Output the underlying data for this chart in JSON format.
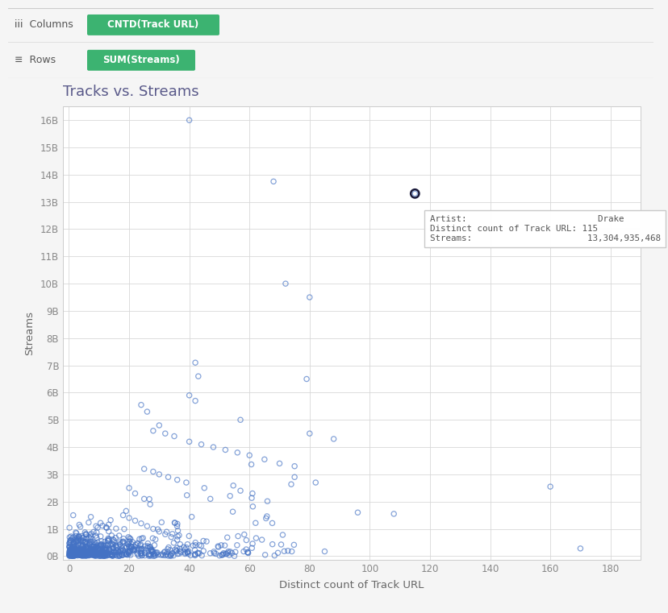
{
  "title": "Tracks vs. Streams",
  "xlabel": "Distinct count of Track URL",
  "ylabel": "Streams",
  "xlim": [
    -2,
    190
  ],
  "ylim": [
    -150000000.0,
    16500000000.0
  ],
  "yticks": [
    0,
    1000000000.0,
    2000000000.0,
    3000000000.0,
    4000000000.0,
    5000000000.0,
    6000000000.0,
    7000000000.0,
    8000000000.0,
    9000000000.0,
    10000000000.0,
    11000000000.0,
    12000000000.0,
    13000000000.0,
    14000000000.0,
    15000000000.0,
    16000000000.0
  ],
  "ytick_labels": [
    "0B",
    "1B",
    "2B",
    "3B",
    "4B",
    "5B",
    "6B",
    "7B",
    "8B",
    "9B",
    "10B",
    "11B",
    "12B",
    "13B",
    "14B",
    "15B",
    "16B"
  ],
  "xticks": [
    0,
    20,
    40,
    60,
    80,
    100,
    120,
    140,
    160,
    180
  ],
  "scatter_color": "#4472C4",
  "scatter_alpha": 0.65,
  "scatter_size": 20,
  "highlight_x": 115,
  "highlight_y": 13304935468,
  "pill_color": "#3cb371",
  "header_columns_pill": "CNTD(Track URL)",
  "header_rows_pill": "SUM(Streams)",
  "background_color": "#ffffff",
  "header_bg": "#f0f0f0",
  "grid_color": "#d8d8d8",
  "title_color": "#5a5a8a",
  "axis_label_color": "#666666",
  "tick_color": "#888888",
  "seed": 42,
  "specific_points": [
    [
      40,
      16000000000.0
    ],
    [
      68,
      13750000000.0
    ],
    [
      115,
      13304935468.0
    ],
    [
      72,
      10000000000.0
    ],
    [
      80,
      9500000000.0
    ],
    [
      42,
      7100000000.0
    ],
    [
      43,
      6600000000.0
    ],
    [
      79,
      6500000000.0
    ],
    [
      40,
      5900000000.0
    ],
    [
      42,
      5700000000.0
    ],
    [
      24,
      5550000000.0
    ],
    [
      26,
      5300000000.0
    ],
    [
      57,
      5000000000.0
    ],
    [
      80,
      4500000000.0
    ],
    [
      88,
      4300000000.0
    ],
    [
      30,
      4800000000.0
    ],
    [
      28,
      4600000000.0
    ],
    [
      32,
      4500000000.0
    ],
    [
      35,
      4400000000.0
    ],
    [
      40,
      4200000000.0
    ],
    [
      44,
      4100000000.0
    ],
    [
      48,
      4000000000.0
    ],
    [
      52,
      3900000000.0
    ],
    [
      56,
      3800000000.0
    ],
    [
      60,
      3700000000.0
    ],
    [
      65,
      3550000000.0
    ],
    [
      70,
      3400000000.0
    ],
    [
      75,
      3300000000.0
    ],
    [
      25,
      3200000000.0
    ],
    [
      28,
      3100000000.0
    ],
    [
      30,
      3000000000.0
    ],
    [
      33,
      2900000000.0
    ],
    [
      36,
      2800000000.0
    ],
    [
      39,
      2700000000.0
    ],
    [
      45,
      2500000000.0
    ],
    [
      57,
      2400000000.0
    ],
    [
      61,
      2300000000.0
    ],
    [
      20,
      2500000000.0
    ],
    [
      22,
      2300000000.0
    ],
    [
      25,
      2100000000.0
    ],
    [
      27,
      1900000000.0
    ],
    [
      96,
      1600000000.0
    ],
    [
      108,
      1550000000.0
    ],
    [
      160,
      2550000000.0
    ],
    [
      170,
      280000000.0
    ],
    [
      18,
      1500000000.0
    ],
    [
      20,
      1400000000.0
    ],
    [
      22,
      1300000000.0
    ],
    [
      24,
      1200000000.0
    ],
    [
      26,
      1100000000.0
    ],
    [
      28,
      1000000000.0
    ],
    [
      30,
      900000000.0
    ],
    [
      32,
      800000000.0
    ],
    [
      34,
      700000000.0
    ],
    [
      36,
      600000000.0
    ],
    [
      75,
      2900000000.0
    ],
    [
      82,
      2700000000.0
    ]
  ]
}
